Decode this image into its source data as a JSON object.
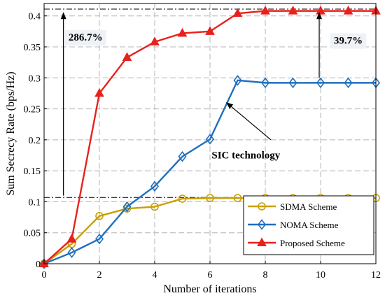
{
  "chart_data": {
    "type": "line",
    "xlabel": "Number of iterations",
    "ylabel": "Sum Secrecy Rate (bps/Hz)",
    "xlim": [
      0,
      12
    ],
    "ylim": [
      0,
      0.42
    ],
    "xticks": [
      0,
      2,
      4,
      6,
      8,
      10,
      12
    ],
    "yticks": [
      0,
      0.05,
      0.1,
      0.15,
      0.2,
      0.25,
      0.3,
      0.35,
      0.4
    ],
    "xtick_labels": [
      "0",
      "2",
      "4",
      "6",
      "8",
      "10",
      "12"
    ],
    "ytick_labels": [
      "0",
      "0.05",
      "0.1",
      "0.15",
      "0.2",
      "0.25",
      "0.3",
      "0.35",
      "0.4"
    ],
    "grid": true,
    "legend_position": "bottom-right",
    "series": [
      {
        "name": "SDMA Scheme",
        "color": "#C8A000",
        "marker": "circle",
        "x": [
          0,
          1,
          2,
          3,
          4,
          5,
          6,
          7,
          8,
          9,
          10,
          11,
          12
        ],
        "values": [
          0,
          0.032,
          0.077,
          0.089,
          0.092,
          0.105,
          0.106,
          0.106,
          0.106,
          0.106,
          0.106,
          0.106,
          0.106
        ]
      },
      {
        "name": "NOMA Scheme",
        "color": "#1F6FBF",
        "marker": "diamond",
        "x": [
          0,
          1,
          2,
          3,
          4,
          5,
          6,
          7,
          8,
          9,
          10,
          11,
          12
        ],
        "values": [
          0,
          0.018,
          0.04,
          0.092,
          0.125,
          0.173,
          0.201,
          0.296,
          0.292,
          0.292,
          0.292,
          0.292,
          0.292
        ]
      },
      {
        "name": "Proposed Scheme",
        "color": "#E8211D",
        "marker": "triangle",
        "x": [
          0,
          1,
          2,
          3,
          4,
          5,
          6,
          7,
          8,
          9,
          10,
          11,
          12
        ],
        "values": [
          0,
          0.04,
          0.275,
          0.333,
          0.358,
          0.372,
          0.375,
          0.404,
          0.408,
          0.408,
          0.408,
          0.408,
          0.408
        ]
      }
    ],
    "reference_lines": [
      {
        "name": "proposed-level-line",
        "y": 0.411,
        "x_from": 0,
        "x_to": 12
      },
      {
        "name": "sdma-level-line",
        "y": 0.107,
        "x_from": 0,
        "x_to": 7
      }
    ],
    "annotations": [
      {
        "name": "gain-over-sdma-label",
        "text": "286.7%",
        "x": 1.5,
        "y": 0.36
      },
      {
        "name": "gain-over-noma-label",
        "text": "39.7%",
        "x": 11.0,
        "y": 0.355
      },
      {
        "name": "sic-technology-label",
        "text": "SIC technology",
        "x": 7.3,
        "y": 0.17
      }
    ],
    "arrows": [
      {
        "name": "gain-over-sdma-arrow",
        "x1": 0.7,
        "y1": 0.11,
        "x2": 0.7,
        "y2": 0.405
      },
      {
        "name": "gain-over-noma-arrow",
        "x1": 9.95,
        "y1": 0.3,
        "x2": 9.95,
        "y2": 0.405
      },
      {
        "name": "sic-technology-arrow",
        "x1": 8.2,
        "y1": 0.2,
        "x2": 6.6,
        "y2": 0.26
      }
    ]
  }
}
